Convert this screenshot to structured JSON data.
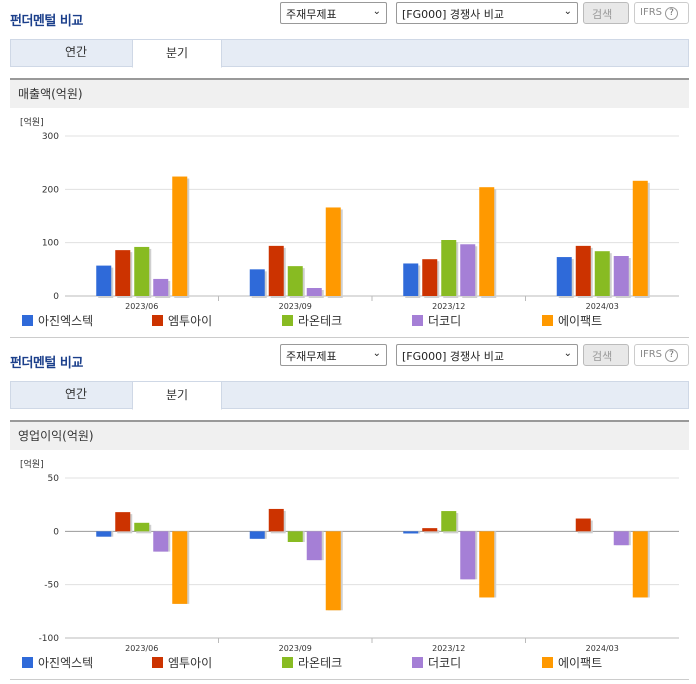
{
  "panels": [
    {
      "title": "펀더멘털 비교",
      "select1": "주재무제표",
      "select2": "[FG000] 경쟁사 비교",
      "search_btn": "검색",
      "ifrs_label": "IFRS",
      "ifrs_q": "?",
      "tabs": [
        "연간",
        "분기"
      ],
      "active_tab": 1,
      "section_title": "매출액(억원)",
      "chart_data": {
        "type": "bar",
        "unit_label": "[억원]",
        "categories": [
          "2023/06",
          "2023/09",
          "2023/12",
          "2024/03"
        ],
        "ylim": [
          0,
          300
        ],
        "yticks": [
          0,
          100,
          200,
          300
        ],
        "grid": true,
        "legend_placement": "bottom",
        "series": [
          {
            "name": "아진엑스텍",
            "color": "#2f6ad9",
            "values": [
              57,
              50,
              61,
              73
            ]
          },
          {
            "name": "엠투아이",
            "color": "#cc3300",
            "values": [
              86,
              94,
              69,
              94
            ]
          },
          {
            "name": "라온테크",
            "color": "#88bb22",
            "values": [
              92,
              56,
              105,
              84
            ]
          },
          {
            "name": "더코디",
            "color": "#a57fd6",
            "values": [
              32,
              15,
              97,
              75
            ]
          },
          {
            "name": "에이팩트",
            "color": "#ff9900",
            "values": [
              224,
              166,
              204,
              216
            ]
          }
        ]
      }
    },
    {
      "title": "펀더멘털 비교",
      "select1": "주재무제표",
      "select2": "[FG000] 경쟁사 비교",
      "search_btn": "검색",
      "ifrs_label": "IFRS",
      "ifrs_q": "?",
      "tabs": [
        "연간",
        "분기"
      ],
      "active_tab": 1,
      "section_title": "영업이익(억원)",
      "chart_data": {
        "type": "bar",
        "unit_label": "[억원]",
        "categories": [
          "2023/06",
          "2023/09",
          "2023/12",
          "2024/03"
        ],
        "ylim": [
          -100,
          50
        ],
        "yticks": [
          -100,
          -50,
          0,
          50
        ],
        "grid": true,
        "legend_placement": "bottom",
        "series": [
          {
            "name": "아진엑스텍",
            "color": "#2f6ad9",
            "values": [
              -5,
              -7,
              -2,
              null
            ]
          },
          {
            "name": "엠투아이",
            "color": "#cc3300",
            "values": [
              18,
              21,
              3,
              12
            ]
          },
          {
            "name": "라온테크",
            "color": "#88bb22",
            "values": [
              8,
              -10,
              19,
              null
            ]
          },
          {
            "name": "더코디",
            "color": "#a57fd6",
            "values": [
              -19,
              -27,
              -45,
              -13
            ]
          },
          {
            "name": "에이팩트",
            "color": "#ff9900",
            "values": [
              -68,
              -74,
              -62,
              -62
            ]
          }
        ]
      }
    }
  ]
}
